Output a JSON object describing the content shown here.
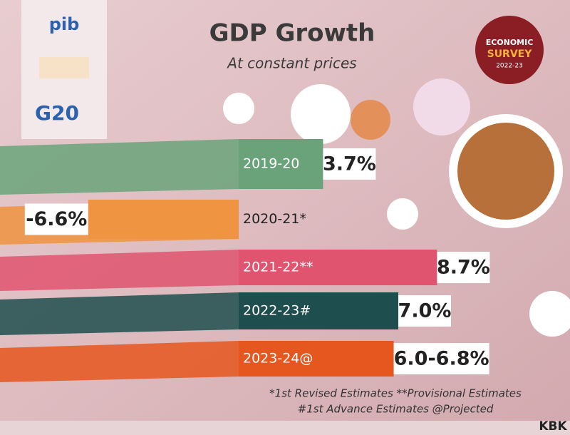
{
  "chart_data": {
    "type": "bar",
    "title": "GDP Growth",
    "subtitle": "At constant prices",
    "categories": [
      "2019-20",
      "2020-21*",
      "2021-22**",
      "2022-23#",
      "2023-24@"
    ],
    "values": [
      3.7,
      -6.6,
      8.7,
      7.0,
      6.0
    ],
    "values_high": [
      null,
      null,
      null,
      null,
      6.8
    ],
    "value_labels": [
      "3.7%",
      "-6.6%",
      "8.7%",
      "7.0%",
      "6.0-6.8%"
    ],
    "colors": [
      "#6aa37a",
      "#ef9440",
      "#e05470",
      "#1f4e4e",
      "#e6561f"
    ],
    "badge": [
      "ECONOMIC",
      "SURVEY",
      "2022-23"
    ],
    "logos": [
      "pib",
      "G20"
    ],
    "footnotes": [
      "*1st Revised Estimates **Provisional Estimates",
      "#1st Advance Estimates @Projected"
    ],
    "credit": "KBK"
  }
}
